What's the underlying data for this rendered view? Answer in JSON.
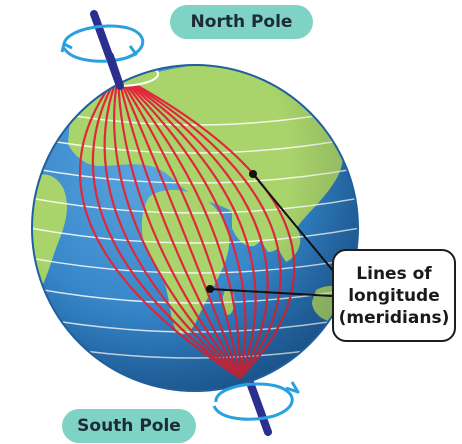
{
  "labels": {
    "north_pole": "North Pole",
    "south_pole": "South Pole",
    "callout": [
      "Lines of",
      "longitude",
      "(meridians)"
    ]
  },
  "colors": {
    "ocean": "#2f7fc4",
    "land": "#a9d46b",
    "meridian": "#e0283c",
    "parallel": "#ffffff",
    "axis": "#2b2f8f",
    "rotation_arrow": "#2aa0e0",
    "pill": "#7fd3c4"
  },
  "icons": [
    "earth-globe",
    "rotation-arrow-icon",
    "earth-axis"
  ]
}
